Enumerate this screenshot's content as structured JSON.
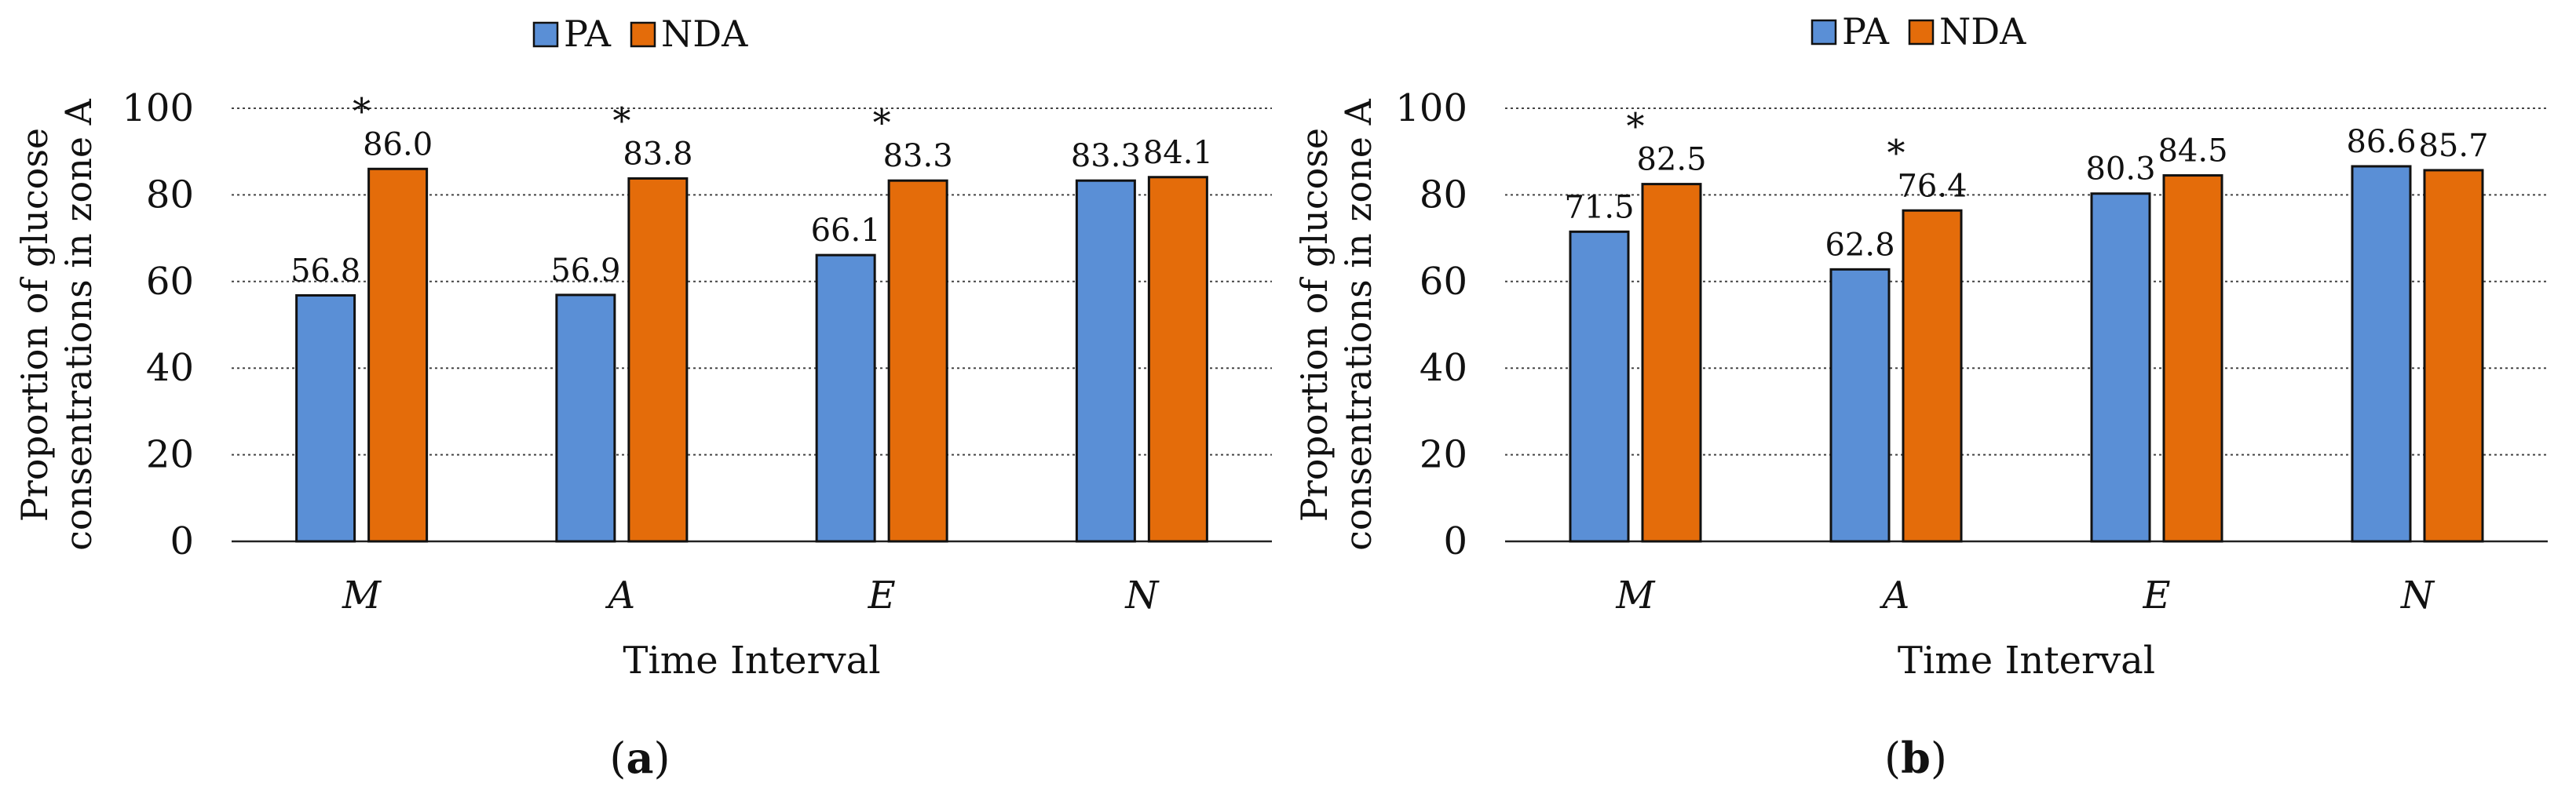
{
  "chart_data": [
    {
      "type": "bar",
      "panel_label": {
        "open": "(",
        "letter": "a",
        "close": ")"
      },
      "categories": [
        "M",
        "A",
        "E",
        "N"
      ],
      "series": [
        {
          "name": "PA",
          "color": "#5a8fd6",
          "values": [
            56.8,
            56.9,
            66.1,
            83.3
          ],
          "value_labels": [
            "56.8",
            "56.9",
            "66.1",
            "83.3"
          ]
        },
        {
          "name": "NDA",
          "color": "#e46c0a",
          "values": [
            86.0,
            83.8,
            83.3,
            84.1
          ],
          "value_labels": [
            "86.0",
            "83.8",
            "83.3",
            "84.1"
          ]
        }
      ],
      "significance": [
        true,
        true,
        true,
        false
      ],
      "significance_marker": "*",
      "xlabel": "Time Interval",
      "ylabel_lines": [
        "Proportion of glucose",
        "consentrations in zone A"
      ],
      "ylim": [
        0,
        100
      ],
      "yticks": [
        0,
        20,
        40,
        60,
        80,
        100
      ],
      "ytick_labels": [
        "0",
        "20",
        "40",
        "60",
        "80",
        "100"
      ],
      "grid": "dotted horizontal",
      "legend_position": "top-center"
    },
    {
      "type": "bar",
      "panel_label": {
        "open": "(",
        "letter": "b",
        "close": ")"
      },
      "categories": [
        "M",
        "A",
        "E",
        "N"
      ],
      "series": [
        {
          "name": "PA",
          "color": "#5a8fd6",
          "values": [
            71.5,
            62.8,
            80.3,
            86.6
          ],
          "value_labels": [
            "71.5",
            "62.8",
            "80.3",
            "86.6"
          ]
        },
        {
          "name": "NDA",
          "color": "#e46c0a",
          "values": [
            82.5,
            76.4,
            84.5,
            85.7
          ],
          "value_labels": [
            "82.5",
            "76.4",
            "84.5",
            "85.7"
          ]
        }
      ],
      "significance": [
        true,
        true,
        false,
        false
      ],
      "significance_marker": "*",
      "xlabel": "Time Interval",
      "ylabel_lines": [
        "Proportion of glucose",
        "consentrations in zone A"
      ],
      "ylim": [
        0,
        100
      ],
      "yticks": [
        0,
        20,
        40,
        60,
        80,
        100
      ],
      "ytick_labels": [
        "0",
        "20",
        "40",
        "60",
        "80",
        "100"
      ],
      "grid": "dotted horizontal",
      "legend_position": "top-center"
    }
  ]
}
